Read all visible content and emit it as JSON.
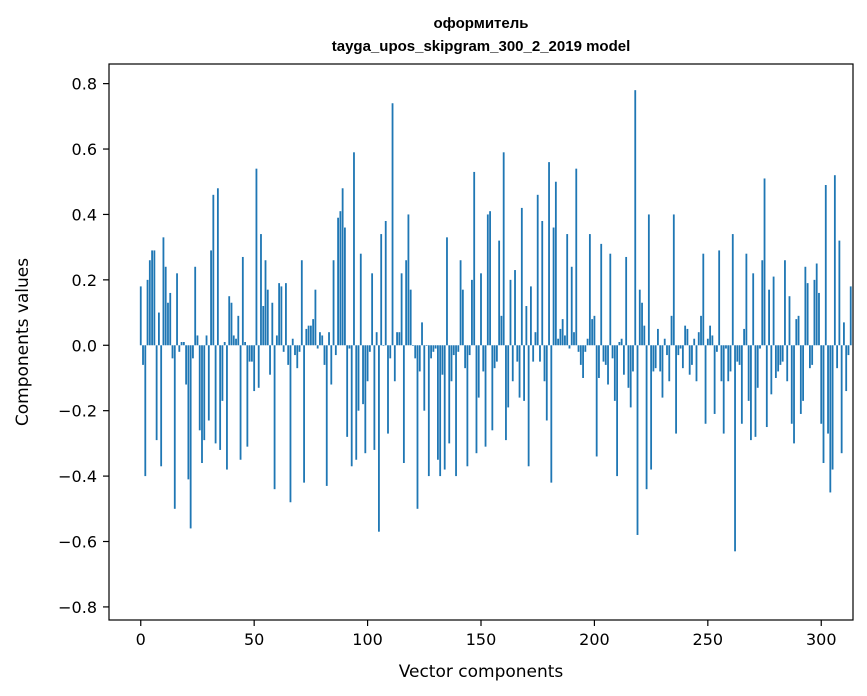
{
  "chart_data": {
    "type": "bar",
    "title_line1": "оформитель",
    "title_line2": "tayga_upos_skipgram_300_2_2019 model",
    "xlabel": "Vector components",
    "ylabel": "Components values",
    "xlim": [
      -14,
      314
    ],
    "ylim": [
      -0.84,
      0.86
    ],
    "x_ticks": [
      0,
      50,
      100,
      150,
      200,
      250,
      300
    ],
    "y_ticks": [
      -0.8,
      -0.6,
      -0.4,
      -0.2,
      0.0,
      0.2,
      0.4,
      0.6,
      0.8
    ],
    "y_tick_labels": [
      "−0.8",
      "−0.6",
      "−0.4",
      "−0.2",
      "0.0",
      "0.2",
      "0.4",
      "0.6",
      "0.8"
    ],
    "bar_color": "#1f77b4",
    "values": [
      0.18,
      -0.06,
      -0.4,
      0.2,
      0.26,
      0.29,
      0.29,
      -0.29,
      0.1,
      -0.37,
      0.33,
      0.24,
      0.13,
      0.16,
      -0.04,
      -0.5,
      0.22,
      -0.02,
      0.01,
      0.01,
      -0.12,
      -0.41,
      -0.56,
      -0.04,
      0.24,
      0.03,
      -0.26,
      -0.36,
      -0.29,
      0.03,
      -0.23,
      0.29,
      0.46,
      -0.3,
      0.48,
      -0.32,
      -0.17,
      0.01,
      -0.38,
      0.15,
      0.13,
      0.03,
      0.02,
      0.09,
      -0.35,
      0.27,
      0.01,
      -0.31,
      -0.05,
      -0.05,
      -0.14,
      0.54,
      -0.13,
      0.34,
      0.12,
      0.26,
      0.17,
      -0.09,
      0.13,
      -0.44,
      0.03,
      0.19,
      0.18,
      -0.02,
      0.19,
      -0.06,
      -0.48,
      0.02,
      -0.03,
      -0.07,
      -0.02,
      0.26,
      -0.42,
      0.05,
      0.06,
      0.06,
      0.08,
      0.17,
      -0.01,
      0.04,
      0.03,
      -0.06,
      -0.43,
      0.04,
      -0.12,
      0.26,
      -0.03,
      0.39,
      0.41,
      0.48,
      0.36,
      -0.28,
      -0.01,
      -0.37,
      0.59,
      -0.35,
      -0.2,
      0.28,
      -0.18,
      -0.33,
      -0.11,
      -0.02,
      0.22,
      -0.32,
      0.04,
      -0.57,
      0.34,
      0.0,
      0.38,
      -0.27,
      -0.04,
      0.74,
      -0.11,
      0.04,
      0.04,
      0.22,
      -0.36,
      0.26,
      0.4,
      0.17,
      0.0,
      -0.04,
      -0.5,
      -0.08,
      0.07,
      -0.2,
      0.0,
      -0.4,
      -0.04,
      -0.02,
      -0.01,
      -0.35,
      -0.4,
      -0.09,
      -0.38,
      0.33,
      -0.3,
      -0.11,
      -0.03,
      -0.4,
      -0.02,
      0.26,
      0.17,
      -0.07,
      -0.37,
      -0.03,
      0.2,
      0.53,
      -0.33,
      -0.16,
      0.22,
      -0.08,
      -0.31,
      0.4,
      0.41,
      -0.26,
      -0.07,
      -0.05,
      0.32,
      0.09,
      0.59,
      -0.29,
      -0.19,
      0.2,
      -0.11,
      0.23,
      -0.05,
      -0.16,
      0.42,
      -0.17,
      0.12,
      -0.37,
      0.18,
      -0.05,
      0.04,
      0.46,
      -0.05,
      0.38,
      -0.11,
      -0.23,
      0.56,
      -0.42,
      0.36,
      0.5,
      0.02,
      0.05,
      0.08,
      0.03,
      0.34,
      -0.01,
      0.24,
      0.04,
      0.54,
      -0.02,
      -0.06,
      -0.1,
      -0.02,
      0.02,
      0.34,
      0.08,
      0.09,
      -0.34,
      -0.1,
      0.31,
      -0.05,
      -0.06,
      -0.12,
      0.28,
      -0.04,
      -0.17,
      -0.4,
      0.01,
      0.02,
      -0.09,
      0.27,
      -0.13,
      -0.19,
      -0.08,
      0.78,
      -0.58,
      0.17,
      0.13,
      0.06,
      -0.44,
      0.4,
      -0.38,
      -0.08,
      -0.07,
      0.05,
      -0.08,
      -0.16,
      0.02,
      -0.03,
      -0.11,
      0.09,
      0.4,
      -0.27,
      -0.03,
      -0.01,
      -0.07,
      0.06,
      0.05,
      -0.09,
      -0.06,
      0.02,
      -0.11,
      0.04,
      0.09,
      0.28,
      -0.24,
      0.02,
      0.06,
      0.03,
      -0.21,
      -0.02,
      0.29,
      -0.11,
      -0.27,
      -0.01,
      -0.11,
      -0.08,
      0.34,
      -0.63,
      -0.05,
      -0.06,
      -0.24,
      0.05,
      0.28,
      -0.17,
      -0.29,
      0.22,
      -0.28,
      -0.13,
      -0.01,
      0.26,
      0.51,
      -0.25,
      0.17,
      -0.15,
      0.21,
      -0.1,
      -0.08,
      -0.06,
      -0.05,
      0.26,
      -0.11,
      0.15,
      -0.24,
      -0.3,
      0.08,
      0.09,
      -0.21,
      -0.17,
      0.24,
      0.19,
      -0.07,
      -0.06,
      0.2,
      0.25,
      0.16,
      -0.24,
      -0.36,
      0.49,
      -0.27,
      -0.45,
      -0.38,
      0.52,
      -0.07,
      0.32,
      -0.33,
      0.07,
      -0.14,
      -0.03,
      0.18
    ]
  }
}
